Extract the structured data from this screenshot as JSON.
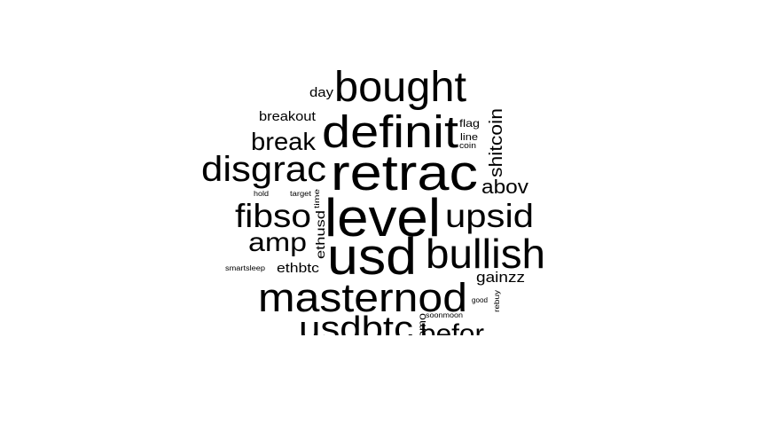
{
  "cloud": {
    "text_color": "#000000",
    "background_color": "#ffffff",
    "words": [
      {
        "text": "bought",
        "rotated": false
      },
      {
        "text": "definit",
        "rotated": false
      },
      {
        "text": "retrac",
        "rotated": false
      },
      {
        "text": "level",
        "rotated": false
      },
      {
        "text": "usd",
        "rotated": false
      },
      {
        "text": "masternod",
        "rotated": false
      },
      {
        "text": "bullish",
        "rotated": false
      },
      {
        "text": "disgrac",
        "rotated": false
      },
      {
        "text": "fibso",
        "rotated": false
      },
      {
        "text": "upsid",
        "rotated": false
      },
      {
        "text": "usdbtc",
        "rotated": false
      },
      {
        "text": "break",
        "rotated": false
      },
      {
        "text": "amp",
        "rotated": false
      },
      {
        "text": "befor",
        "rotated": false
      },
      {
        "text": "abov",
        "rotated": false
      },
      {
        "text": "shitcoin",
        "rotated": true
      },
      {
        "text": "gainzz",
        "rotated": false
      },
      {
        "text": "breakout",
        "rotated": false
      },
      {
        "text": "day",
        "rotated": false
      },
      {
        "text": "ethbtc",
        "rotated": false
      },
      {
        "text": "ethusd",
        "rotated": true
      },
      {
        "text": "flag",
        "rotated": false
      },
      {
        "text": "line",
        "rotated": false
      },
      {
        "text": "coin",
        "rotated": false
      },
      {
        "text": "fomo",
        "rotated": true
      },
      {
        "text": "time",
        "rotated": true
      },
      {
        "text": "hold",
        "rotated": false
      },
      {
        "text": "target",
        "rotated": false
      },
      {
        "text": "smartsleep",
        "rotated": false
      },
      {
        "text": "soonmoon",
        "rotated": false
      },
      {
        "text": "good",
        "rotated": false
      },
      {
        "text": "rebuy",
        "rotated": true
      }
    ]
  }
}
